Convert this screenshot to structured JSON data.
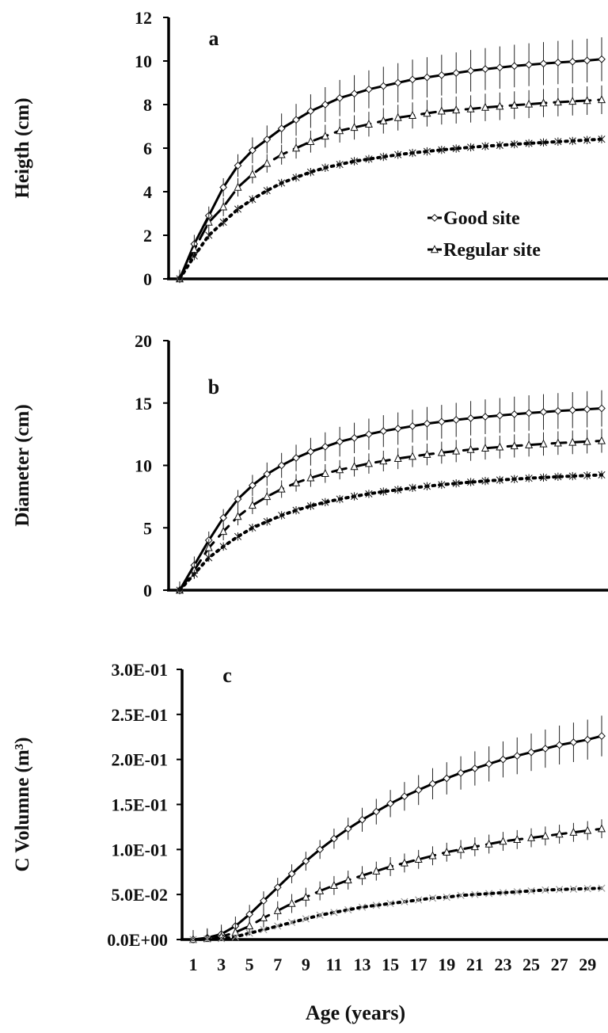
{
  "chart_data": [
    {
      "type": "line",
      "panel_label": "a",
      "ylabel": "Heigth (cm)",
      "xlabel": "",
      "ylim": [
        0,
        12
      ],
      "yticks": [
        0,
        2,
        4,
        6,
        8,
        10,
        12
      ],
      "ytick_labels": [
        "0",
        "2",
        "4",
        "6",
        "8",
        "10",
        "12"
      ],
      "x": [
        1,
        2,
        3,
        4,
        5,
        6,
        7,
        8,
        9,
        10,
        11,
        12,
        13,
        14,
        15,
        16,
        17,
        18,
        19,
        20,
        21,
        22,
        23,
        24,
        25,
        26,
        27,
        28,
        29,
        30
      ],
      "legend": {
        "position": "bottom-right",
        "entries": [
          "Good site",
          "Regular site"
        ]
      },
      "series": [
        {
          "name": "Good site",
          "style": "solid",
          "marker": "diamond",
          "values": [
            0,
            1.6,
            2.9,
            4.2,
            5.2,
            5.9,
            6.4,
            6.9,
            7.3,
            7.7,
            8.0,
            8.3,
            8.5,
            8.7,
            8.85,
            9.0,
            9.15,
            9.25,
            9.35,
            9.45,
            9.55,
            9.63,
            9.7,
            9.77,
            9.83,
            9.88,
            9.93,
            9.97,
            10.02,
            10.08
          ]
        },
        {
          "name": "Regular site",
          "style": "dash",
          "marker": "triangle",
          "values": [
            0,
            1.35,
            2.6,
            3.3,
            4.2,
            4.8,
            5.3,
            5.7,
            6.0,
            6.3,
            6.55,
            6.8,
            6.95,
            7.1,
            7.25,
            7.4,
            7.5,
            7.6,
            7.7,
            7.75,
            7.8,
            7.87,
            7.92,
            7.97,
            8.02,
            8.07,
            8.11,
            8.15,
            8.18,
            8.22
          ]
        },
        {
          "style": "dot",
          "marker": "star",
          "values": [
            0,
            1.05,
            2.0,
            2.6,
            3.2,
            3.65,
            4.05,
            4.4,
            4.65,
            4.9,
            5.1,
            5.25,
            5.4,
            5.5,
            5.6,
            5.7,
            5.78,
            5.85,
            5.92,
            5.98,
            6.04,
            6.09,
            6.13,
            6.18,
            6.22,
            6.26,
            6.3,
            6.33,
            6.37,
            6.41
          ]
        }
      ]
    },
    {
      "type": "line",
      "panel_label": "b",
      "ylabel": "Diameter (cm)",
      "xlabel": "",
      "ylim": [
        0,
        20
      ],
      "yticks": [
        0,
        5,
        10,
        15,
        20
      ],
      "ytick_labels": [
        "0",
        "5",
        "10",
        "15",
        "20"
      ],
      "x": [
        1,
        2,
        3,
        4,
        5,
        6,
        7,
        8,
        9,
        10,
        11,
        12,
        13,
        14,
        15,
        16,
        17,
        18,
        19,
        20,
        21,
        22,
        23,
        24,
        25,
        26,
        27,
        28,
        29,
        30
      ],
      "series": [
        {
          "name": "Good site",
          "style": "solid",
          "marker": "diamond",
          "values": [
            0,
            2.0,
            4.0,
            5.8,
            7.3,
            8.4,
            9.3,
            10.0,
            10.6,
            11.1,
            11.5,
            11.9,
            12.2,
            12.5,
            12.75,
            12.95,
            13.15,
            13.35,
            13.5,
            13.65,
            13.78,
            13.9,
            14.0,
            14.1,
            14.2,
            14.28,
            14.36,
            14.43,
            14.5,
            14.57
          ]
        },
        {
          "name": "Regular site",
          "style": "dash",
          "marker": "triangle",
          "values": [
            0,
            1.6,
            3.4,
            4.7,
            5.9,
            6.8,
            7.5,
            8.1,
            8.6,
            9.0,
            9.35,
            9.65,
            9.9,
            10.15,
            10.35,
            10.55,
            10.72,
            10.88,
            11.02,
            11.15,
            11.27,
            11.38,
            11.47,
            11.56,
            11.64,
            11.72,
            11.79,
            11.85,
            11.91,
            11.97
          ]
        },
        {
          "style": "dot",
          "marker": "star",
          "values": [
            0,
            1.3,
            2.6,
            3.5,
            4.3,
            5.0,
            5.5,
            6.0,
            6.4,
            6.75,
            7.05,
            7.3,
            7.52,
            7.72,
            7.9,
            8.05,
            8.2,
            8.33,
            8.45,
            8.56,
            8.66,
            8.75,
            8.83,
            8.9,
            8.97,
            9.03,
            9.09,
            9.14,
            9.19,
            9.24
          ]
        }
      ]
    },
    {
      "type": "line",
      "panel_label": "c",
      "ylabel": "C Volumne (m³)",
      "xlabel": "Age (years)",
      "ylim": [
        0,
        0.3
      ],
      "yticks": [
        0,
        0.05,
        0.1,
        0.15,
        0.2,
        0.25,
        0.3
      ],
      "ytick_labels": [
        "0.0E+00",
        "5.0E-02",
        "1.0E-01",
        "1.5E-01",
        "2.0E-01",
        "2.5E-01",
        "3.0E-01"
      ],
      "xtick_labels": [
        "1",
        "3",
        "5",
        "7",
        "9",
        "11",
        "13",
        "15",
        "17",
        "19",
        "21",
        "23",
        "25",
        "27",
        "29"
      ],
      "x": [
        1,
        2,
        3,
        4,
        5,
        6,
        7,
        8,
        9,
        10,
        11,
        12,
        13,
        14,
        15,
        16,
        17,
        18,
        19,
        20,
        21,
        22,
        23,
        24,
        25,
        26,
        27,
        28,
        29,
        30
      ],
      "series": [
        {
          "name": "Good site",
          "style": "solid",
          "marker": "diamond",
          "values": [
            0,
            0.002,
            0.006,
            0.015,
            0.028,
            0.043,
            0.058,
            0.073,
            0.087,
            0.1,
            0.112,
            0.123,
            0.133,
            0.142,
            0.151,
            0.159,
            0.166,
            0.173,
            0.179,
            0.185,
            0.19,
            0.195,
            0.2,
            0.204,
            0.208,
            0.212,
            0.216,
            0.219,
            0.222,
            0.226
          ]
        },
        {
          "name": "Regular site",
          "style": "dash",
          "marker": "triangle",
          "values": [
            0,
            0.001,
            0.003,
            0.008,
            0.015,
            0.024,
            0.032,
            0.04,
            0.047,
            0.054,
            0.06,
            0.066,
            0.071,
            0.076,
            0.081,
            0.085,
            0.089,
            0.093,
            0.097,
            0.1,
            0.103,
            0.106,
            0.109,
            0.111,
            0.113,
            0.115,
            0.117,
            0.119,
            0.121,
            0.123
          ]
        },
        {
          "style": "dot",
          "marker": "x",
          "values": [
            0,
            0.0005,
            0.001,
            0.003,
            0.007,
            0.011,
            0.015,
            0.019,
            0.023,
            0.027,
            0.03,
            0.033,
            0.036,
            0.038,
            0.04,
            0.042,
            0.044,
            0.046,
            0.047,
            0.049,
            0.05,
            0.051,
            0.052,
            0.053,
            0.054,
            0.055,
            0.0555,
            0.056,
            0.0565,
            0.057
          ]
        }
      ]
    }
  ]
}
